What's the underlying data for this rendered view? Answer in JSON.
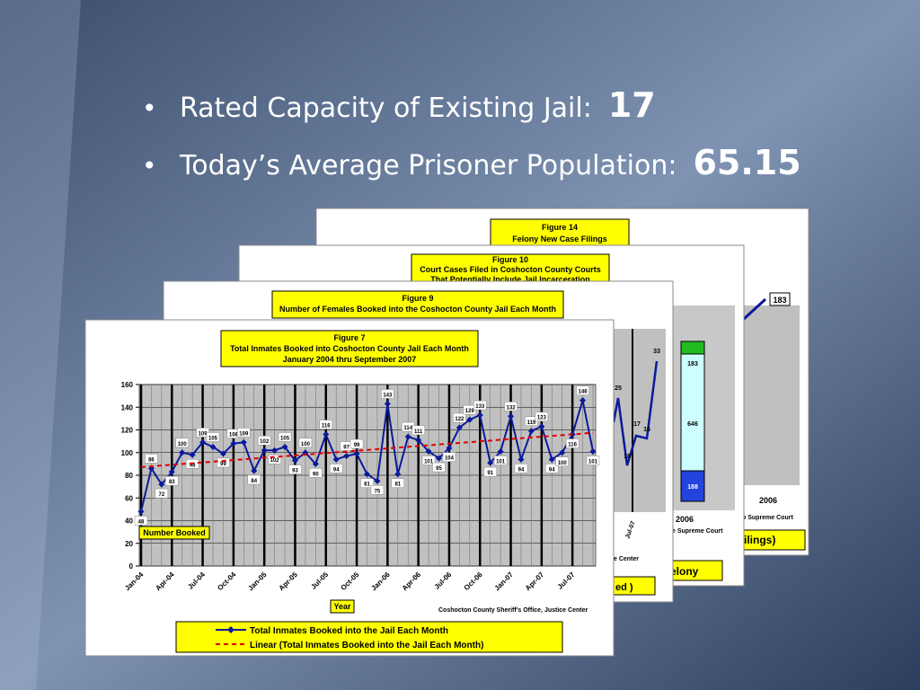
{
  "bullets": [
    {
      "text": "Rated Capacity of Existing Jail:",
      "value": "17"
    },
    {
      "text": "Today’s Average Prisoner Population:",
      "value": "65.15"
    }
  ],
  "background_figures": [
    {
      "title": [
        "Figure 14",
        "Felony New Case Filings"
      ],
      "fragments": [
        "183",
        "2006",
        "o Supreme Court",
        "ilings)"
      ]
    },
    {
      "title": [
        "Figure 10",
        "Court Cases Filed in Coshocton County Courts",
        "That Potentially Include Jail Incarceration"
      ],
      "fragments": [
        "183",
        "646",
        "188",
        "2006",
        "e Supreme Court",
        "elony"
      ]
    },
    {
      "title": [
        "Figure 9",
        "Number of Females Booked into the Coshocton County Jail Each Month"
      ],
      "fragments": [
        "33",
        "25",
        "18",
        "17",
        "16",
        "Jul-07",
        "e Center",
        "ed )"
      ]
    }
  ],
  "chart_data": {
    "type": "line",
    "title": [
      "Figure 7",
      "Total Inmates Booked into Coshocton County Jail Each Month",
      "January 2004 thru September 2007"
    ],
    "y_label": "Number Booked",
    "x_label": "Year",
    "source": "Coshocton County Sheriff's Office, Justice Center",
    "categories": [
      "Jan-04",
      null,
      null,
      "Apr-04",
      null,
      null,
      "Jul-04",
      null,
      null,
      "Oct-04",
      null,
      null,
      "Jan-05",
      null,
      null,
      "Apr-05",
      null,
      null,
      "Jul-05",
      null,
      null,
      "Oct-05",
      null,
      null,
      "Jan-06",
      null,
      null,
      "Apr-06",
      null,
      null,
      "Jul-06",
      null,
      null,
      "Oct-06",
      null,
      null,
      "Jan-07",
      null,
      null,
      "Apr-07",
      null,
      null,
      "Jul-07",
      null,
      null
    ],
    "series": [
      {
        "name": "Total Inmates Booked  into the Jail Each Month",
        "color": "#0a1a9a",
        "values": [
          48,
          86,
          72,
          83,
          100,
          98,
          109,
          105,
          99,
          108,
          109,
          84,
          102,
          102,
          105,
          93,
          100,
          90,
          116,
          94,
          97,
          99,
          81,
          75,
          143,
          81,
          114,
          111,
          101,
          95,
          104,
          122,
          129,
          133,
          91,
          101,
          132,
          94,
          119,
          123,
          94,
          100,
          116,
          146,
          101
        ]
      }
    ],
    "trendline": {
      "name": "Linear (Total Inmates Booked  into the Jail Each Month)",
      "color": "#e00000"
    },
    "ylim": [
      0,
      160
    ],
    "yticks": [
      0,
      20,
      40,
      60,
      80,
      100,
      120,
      140,
      160
    ],
    "grid": true
  }
}
